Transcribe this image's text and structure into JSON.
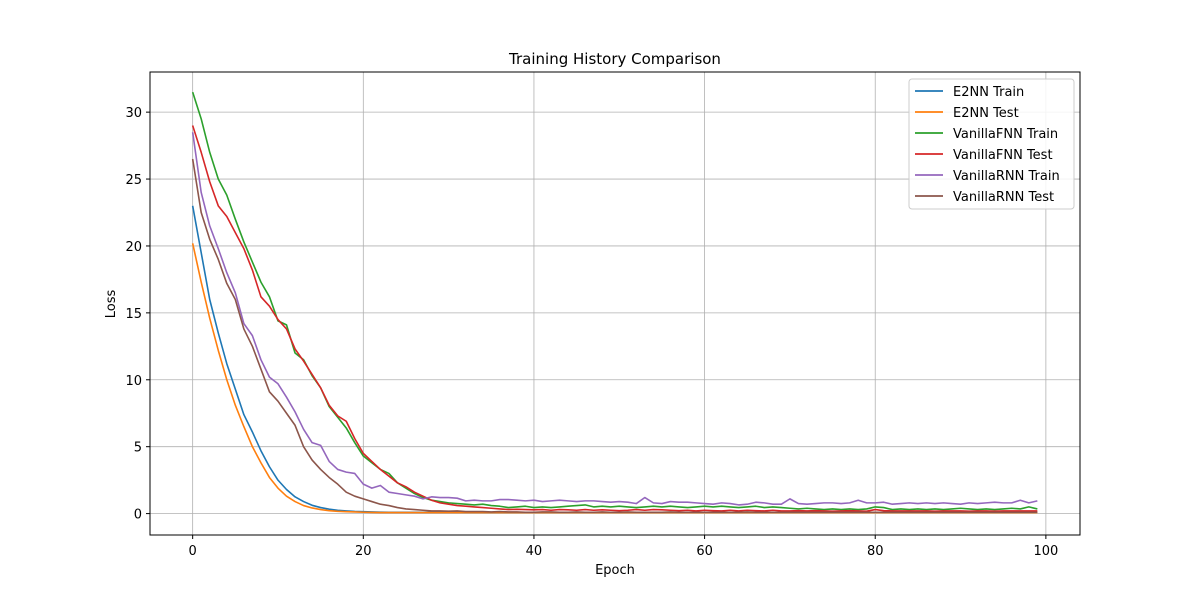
{
  "chart_data": {
    "type": "line",
    "title": "Training History Comparison",
    "xlabel": "Epoch",
    "ylabel": "Loss",
    "xlim": [
      -5,
      104
    ],
    "ylim": [
      -1.6,
      33
    ],
    "xticks": [
      0,
      20,
      40,
      60,
      80,
      100
    ],
    "yticks": [
      0,
      5,
      10,
      15,
      20,
      25,
      30
    ],
    "grid": true,
    "legend_position": "top-right",
    "series": [
      {
        "name": "E2NN Train",
        "color": "#1f77b4",
        "values": [
          23.0,
          19.5,
          16.0,
          13.5,
          11.2,
          9.3,
          7.4,
          6.1,
          4.7,
          3.5,
          2.5,
          1.8,
          1.25,
          0.9,
          0.62,
          0.45,
          0.33,
          0.25,
          0.2,
          0.16,
          0.14,
          0.12,
          0.11,
          0.1,
          0.1,
          0.1,
          0.1,
          0.1,
          0.1,
          0.1,
          0.1,
          0.1,
          0.1,
          0.1,
          0.1,
          0.1,
          0.1,
          0.1,
          0.1,
          0.1,
          0.1,
          0.1,
          0.1,
          0.1,
          0.1,
          0.1,
          0.1,
          0.1,
          0.1,
          0.1,
          0.1,
          0.1,
          0.1,
          0.1,
          0.1,
          0.1,
          0.1,
          0.1,
          0.1,
          0.1,
          0.1,
          0.1,
          0.1,
          0.1,
          0.1,
          0.1,
          0.1,
          0.1,
          0.1,
          0.1,
          0.1,
          0.1,
          0.1,
          0.1,
          0.1,
          0.1,
          0.1,
          0.1,
          0.1,
          0.1,
          0.1,
          0.1,
          0.1,
          0.1,
          0.1,
          0.1,
          0.1,
          0.1,
          0.1,
          0.1,
          0.1,
          0.1,
          0.1,
          0.1,
          0.1,
          0.1,
          0.1,
          0.1,
          0.1,
          0.1
        ]
      },
      {
        "name": "E2NN Test",
        "color": "#ff7f0e",
        "values": [
          20.2,
          17.3,
          14.6,
          12.2,
          10.0,
          8.1,
          6.5,
          5.0,
          3.8,
          2.7,
          1.9,
          1.3,
          0.9,
          0.6,
          0.42,
          0.3,
          0.22,
          0.17,
          0.14,
          0.12,
          0.1,
          0.09,
          0.08,
          0.08,
          0.08,
          0.08,
          0.08,
          0.08,
          0.08,
          0.08,
          0.08,
          0.08,
          0.08,
          0.08,
          0.08,
          0.08,
          0.08,
          0.08,
          0.08,
          0.08,
          0.08,
          0.08,
          0.08,
          0.08,
          0.08,
          0.08,
          0.08,
          0.08,
          0.08,
          0.08,
          0.08,
          0.08,
          0.08,
          0.08,
          0.08,
          0.08,
          0.08,
          0.08,
          0.08,
          0.08,
          0.08,
          0.08,
          0.08,
          0.08,
          0.08,
          0.08,
          0.08,
          0.08,
          0.08,
          0.08,
          0.08,
          0.08,
          0.08,
          0.08,
          0.08,
          0.08,
          0.08,
          0.08,
          0.08,
          0.08,
          0.08,
          0.08,
          0.08,
          0.08,
          0.08,
          0.08,
          0.08,
          0.08,
          0.08,
          0.08,
          0.08,
          0.08,
          0.08,
          0.08,
          0.08,
          0.08,
          0.08,
          0.08,
          0.08,
          0.08
        ]
      },
      {
        "name": "VanillaFNN Train",
        "color": "#2ca02c",
        "values": [
          31.5,
          29.5,
          27.0,
          25.0,
          23.8,
          22.0,
          20.3,
          18.8,
          17.3,
          16.2,
          14.4,
          14.1,
          12.0,
          11.5,
          10.3,
          9.4,
          8.0,
          7.2,
          6.4,
          5.3,
          4.3,
          3.8,
          3.3,
          3.0,
          2.3,
          1.9,
          1.5,
          1.2,
          1.0,
          0.9,
          0.8,
          0.75,
          0.7,
          0.65,
          0.7,
          0.6,
          0.55,
          0.45,
          0.5,
          0.55,
          0.45,
          0.5,
          0.45,
          0.5,
          0.55,
          0.6,
          0.65,
          0.5,
          0.55,
          0.5,
          0.55,
          0.5,
          0.45,
          0.5,
          0.55,
          0.5,
          0.55,
          0.5,
          0.45,
          0.5,
          0.55,
          0.5,
          0.55,
          0.5,
          0.45,
          0.5,
          0.55,
          0.45,
          0.5,
          0.45,
          0.4,
          0.35,
          0.4,
          0.35,
          0.3,
          0.35,
          0.3,
          0.35,
          0.3,
          0.35,
          0.5,
          0.45,
          0.3,
          0.35,
          0.3,
          0.35,
          0.3,
          0.35,
          0.3,
          0.35,
          0.4,
          0.35,
          0.3,
          0.35,
          0.3,
          0.35,
          0.4,
          0.35,
          0.5,
          0.35
        ]
      },
      {
        "name": "VanillaFNN Test",
        "color": "#d62728",
        "values": [
          29.0,
          27.0,
          24.8,
          23.0,
          22.2,
          21.0,
          19.8,
          18.2,
          16.2,
          15.5,
          14.5,
          13.8,
          12.3,
          11.4,
          10.4,
          9.4,
          8.1,
          7.3,
          6.9,
          5.6,
          4.5,
          3.9,
          3.3,
          2.8,
          2.3,
          2.0,
          1.6,
          1.3,
          1.0,
          0.8,
          0.7,
          0.6,
          0.55,
          0.5,
          0.45,
          0.4,
          0.35,
          0.3,
          0.32,
          0.3,
          0.28,
          0.3,
          0.25,
          0.3,
          0.28,
          0.25,
          0.3,
          0.25,
          0.28,
          0.25,
          0.22,
          0.25,
          0.3,
          0.25,
          0.3,
          0.28,
          0.25,
          0.22,
          0.25,
          0.2,
          0.25,
          0.22,
          0.2,
          0.25,
          0.2,
          0.25,
          0.22,
          0.2,
          0.25,
          0.2,
          0.2,
          0.22,
          0.2,
          0.22,
          0.2,
          0.18,
          0.2,
          0.22,
          0.2,
          0.18,
          0.3,
          0.22,
          0.2,
          0.2,
          0.2,
          0.2,
          0.2,
          0.18,
          0.2,
          0.2,
          0.2,
          0.18,
          0.2,
          0.2,
          0.18,
          0.2,
          0.2,
          0.2,
          0.2,
          0.2
        ]
      },
      {
        "name": "VanillaRNN Train",
        "color": "#9467bd",
        "values": [
          28.5,
          24.0,
          21.5,
          19.8,
          18.0,
          16.5,
          14.2,
          13.3,
          11.5,
          10.2,
          9.7,
          8.7,
          7.6,
          6.3,
          5.3,
          5.1,
          3.9,
          3.3,
          3.1,
          3.0,
          2.2,
          1.9,
          2.1,
          1.6,
          1.5,
          1.4,
          1.3,
          1.1,
          1.25,
          1.2,
          1.2,
          1.15,
          0.95,
          1.0,
          0.95,
          0.95,
          1.05,
          1.05,
          1.0,
          0.95,
          1.0,
          0.9,
          0.95,
          1.0,
          0.95,
          0.9,
          0.95,
          0.95,
          0.9,
          0.85,
          0.9,
          0.85,
          0.75,
          1.2,
          0.8,
          0.75,
          0.9,
          0.85,
          0.85,
          0.8,
          0.75,
          0.7,
          0.8,
          0.75,
          0.65,
          0.7,
          0.85,
          0.8,
          0.7,
          0.7,
          1.1,
          0.75,
          0.7,
          0.75,
          0.8,
          0.8,
          0.75,
          0.8,
          1.0,
          0.8,
          0.8,
          0.85,
          0.7,
          0.75,
          0.8,
          0.75,
          0.8,
          0.75,
          0.8,
          0.75,
          0.7,
          0.8,
          0.75,
          0.8,
          0.85,
          0.8,
          0.8,
          1.0,
          0.8,
          0.95
        ]
      },
      {
        "name": "VanillaRNN Test",
        "color": "#8c564b",
        "values": [
          26.5,
          22.5,
          20.5,
          19.0,
          17.2,
          16.0,
          13.8,
          12.5,
          10.8,
          9.1,
          8.4,
          7.5,
          6.6,
          5.0,
          4.0,
          3.3,
          2.7,
          2.2,
          1.6,
          1.3,
          1.1,
          0.9,
          0.7,
          0.6,
          0.45,
          0.35,
          0.3,
          0.25,
          0.2,
          0.2,
          0.18,
          0.2,
          0.15,
          0.15,
          0.15,
          0.12,
          0.15,
          0.12,
          0.12,
          0.1,
          0.1,
          0.12,
          0.12,
          0.1,
          0.1,
          0.12,
          0.1,
          0.1,
          0.12,
          0.1,
          0.1,
          0.12,
          0.1,
          0.1,
          0.1,
          0.1,
          0.12,
          0.1,
          0.1,
          0.1,
          0.1,
          0.1,
          0.1,
          0.1,
          0.1,
          0.12,
          0.1,
          0.1,
          0.1,
          0.1,
          0.1,
          0.1,
          0.1,
          0.1,
          0.1,
          0.1,
          0.1,
          0.1,
          0.1,
          0.1,
          0.1,
          0.1,
          0.1,
          0.1,
          0.1,
          0.1,
          0.1,
          0.1,
          0.1,
          0.1,
          0.1,
          0.1,
          0.1,
          0.1,
          0.1,
          0.1,
          0.1,
          0.1,
          0.1,
          0.1
        ]
      }
    ]
  }
}
